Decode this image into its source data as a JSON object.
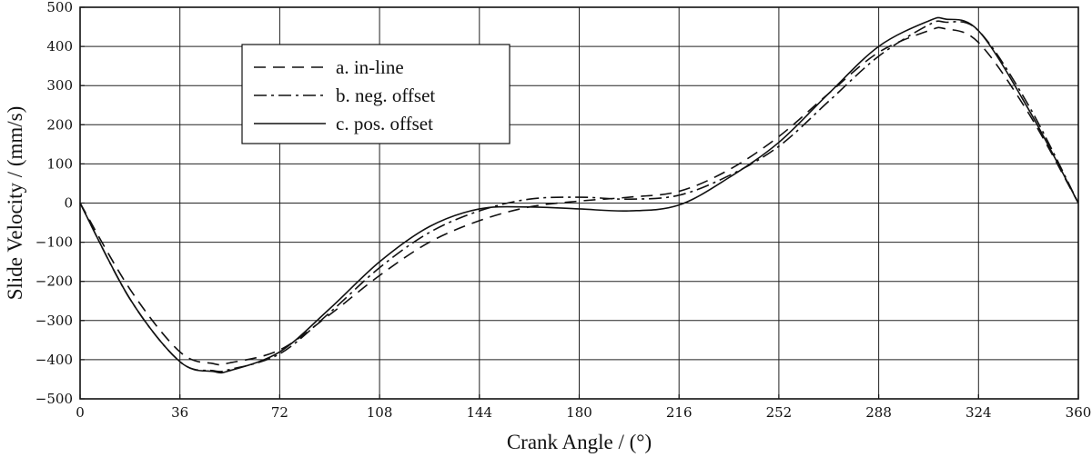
{
  "chart_data": {
    "type": "line",
    "title": "",
    "xlabel": "Crank Angle / (°)",
    "ylabel": "Slide Velocity / (mm/s)",
    "xlim": [
      0,
      360
    ],
    "ylim": [
      -500,
      500
    ],
    "xticks": [
      "0",
      "36",
      "72",
      "108",
      "144",
      "180",
      "216",
      "252",
      "288",
      "324",
      "360"
    ],
    "yticks": [
      "500",
      "400",
      "300",
      "200",
      "100",
      "0",
      "−100",
      "−200",
      "−300",
      "−400",
      "−500"
    ],
    "grid": true,
    "legend_position": "top-left",
    "x": [
      0,
      18,
      36,
      48,
      54,
      72,
      90,
      108,
      126,
      144,
      162,
      180,
      198,
      216,
      234,
      252,
      270,
      288,
      306,
      312,
      324,
      342,
      360
    ],
    "series": [
      {
        "name": "a. in-line",
        "style": "dashed",
        "values": [
          0,
          -220,
          -380,
          -410,
          -408,
          -375,
          -285,
          -185,
          -100,
          -45,
          -10,
          5,
          15,
          30,
          85,
          170,
          280,
          385,
          440,
          445,
          410,
          230,
          0
        ]
      },
      {
        "name": "b. neg. offset",
        "style": "dash-dot",
        "values": [
          0,
          -245,
          -405,
          -428,
          -425,
          -385,
          -280,
          -165,
          -75,
          -20,
          10,
          15,
          10,
          20,
          70,
          145,
          260,
          375,
          455,
          462,
          440,
          250,
          0
        ]
      },
      {
        "name": "c. pos. offset",
        "style": "solid",
        "values": [
          0,
          -245,
          -405,
          -430,
          -428,
          -380,
          -270,
          -150,
          -60,
          -15,
          -10,
          -15,
          -20,
          -5,
          65,
          155,
          280,
          400,
          465,
          470,
          440,
          240,
          0
        ]
      }
    ]
  }
}
